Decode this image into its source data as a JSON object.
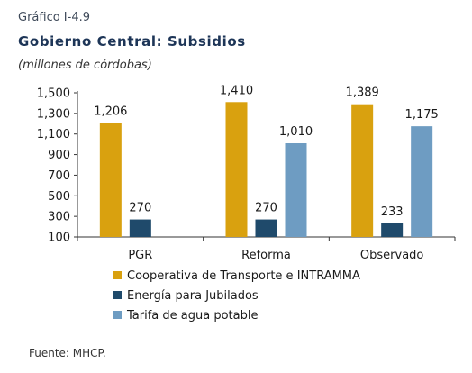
{
  "caption": "Gráfico I-4.9",
  "title": "Gobierno Central: Subsidios",
  "subtitle": "(millones de córdobas)",
  "source": "Fuente: MHCP.",
  "chart_data": {
    "type": "bar",
    "categories": [
      "PGR",
      "Reforma",
      "Observado"
    ],
    "series": [
      {
        "name": "Cooperativa de Transporte e INTRAMMA",
        "values": [
          1206,
          1410,
          1389
        ],
        "labels": [
          "1,206",
          "1,410",
          "1,389"
        ],
        "color": "#D9A10F"
      },
      {
        "name": "Energía para Jubilados",
        "values": [
          270,
          270,
          233
        ],
        "labels": [
          "270",
          "270",
          "233"
        ],
        "color": "#1F4A6B"
      },
      {
        "name": "Tarifa de agua potable",
        "values": [
          null,
          1010,
          1175
        ],
        "labels": [
          "",
          "1,010",
          "1,175"
        ],
        "color": "#6E9CC2"
      }
    ],
    "ylim": [
      100,
      1500
    ],
    "yticks": [
      100,
      300,
      500,
      700,
      900,
      1100,
      1300,
      1500
    ],
    "ytick_labels": [
      "100",
      "300",
      "500",
      "700",
      "900",
      "1,100",
      "1,300",
      "1,500"
    ],
    "legend_position": "bottom",
    "grid": false
  }
}
